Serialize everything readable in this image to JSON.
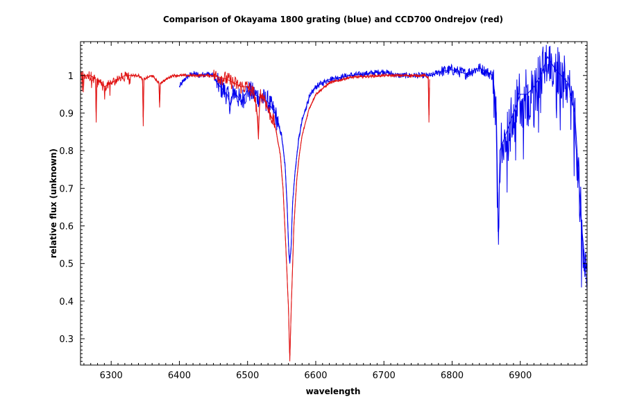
{
  "chart_data": {
    "type": "line",
    "title": "Comparison of Okayama 1800 grating (blue) and CCD700 Ondrejov (red)",
    "xlabel": "wavelength",
    "ylabel": "relative flux (unknown)",
    "xlim": [
      6255,
      6998
    ],
    "ylim": [
      0.23,
      1.09
    ],
    "x_ticks": [
      6300,
      6400,
      6500,
      6600,
      6700,
      6800,
      6900
    ],
    "y_ticks": [
      0.3,
      0.4,
      0.5,
      0.6,
      0.7,
      0.8,
      0.9,
      1
    ],
    "x_tick_labels": [
      "6300",
      "6400",
      "6500",
      "6600",
      "6700",
      "6800",
      "6900"
    ],
    "y_tick_labels": [
      "0.3",
      "0.4",
      "0.5",
      "0.6",
      "0.7",
      "0.8",
      "0.9",
      "1"
    ],
    "grid": false,
    "colors": {
      "blue_series": "#0000ee",
      "red_series": "#e01010",
      "axes": "#000000"
    },
    "series": [
      {
        "color": "#0000ee",
        "x": [
          6400,
          6410,
          6420,
          6430,
          6440,
          6450,
          6455,
          6460,
          6470,
          6475,
          6480,
          6490,
          6500,
          6510,
          6520,
          6530,
          6540,
          6545,
          6550,
          6555,
          6558,
          6560,
          6562,
          6564,
          6566,
          6570,
          6575,
          6580,
          6590,
          6600,
          6620,
          6650,
          6700,
          6720,
          6750,
          6770,
          6780,
          6800,
          6820,
          6840,
          6860,
          6865,
          6868,
          6870,
          6880,
          6890,
          6900,
          6910,
          6920,
          6930,
          6940,
          6950,
          6960,
          6970,
          6980,
          6985,
          6990,
          6995,
          6998
        ],
        "y": [
          0.97,
          0.995,
          1.005,
          1.0,
          1.005,
          1.0,
          0.98,
          0.97,
          0.95,
          0.92,
          0.96,
          0.93,
          0.96,
          0.95,
          0.94,
          0.93,
          0.9,
          0.87,
          0.84,
          0.76,
          0.66,
          0.55,
          0.5,
          0.55,
          0.66,
          0.75,
          0.83,
          0.88,
          0.94,
          0.97,
          0.99,
          1.0,
          1.01,
          1.0,
          1.0,
          1.0,
          1.01,
          1.015,
          1.005,
          1.02,
          1.0,
          0.9,
          0.55,
          0.8,
          0.85,
          0.9,
          0.95,
          0.95,
          0.97,
          1.0,
          1.05,
          1.02,
          1.0,
          0.98,
          0.9,
          0.75,
          0.6,
          0.5,
          0.43
        ]
      },
      {
        "color": "#e01010",
        "x": [
          6255,
          6270,
          6277,
          6278,
          6279,
          6290,
          6300,
          6320,
          6340,
          6346,
          6347,
          6348,
          6360,
          6370,
          6371,
          6372,
          6390,
          6420,
          6450,
          6470,
          6490,
          6500,
          6510,
          6514,
          6516,
          6518,
          6525,
          6530,
          6540,
          6548,
          6552,
          6556,
          6560,
          6562,
          6564,
          6568,
          6572,
          6576,
          6580,
          6590,
          6600,
          6620,
          6650,
          6700,
          6740,
          6760,
          6765,
          6766,
          6767
        ],
        "y": [
          1.0,
          1.0,
          0.99,
          0.875,
          0.99,
          0.97,
          0.98,
          1.0,
          1.0,
          0.99,
          0.865,
          0.99,
          1.0,
          0.98,
          0.915,
          0.98,
          1.0,
          1.0,
          1.0,
          0.99,
          0.97,
          0.97,
          0.95,
          0.9,
          0.83,
          0.95,
          0.94,
          0.91,
          0.87,
          0.79,
          0.7,
          0.55,
          0.38,
          0.24,
          0.38,
          0.6,
          0.72,
          0.79,
          0.84,
          0.91,
          0.95,
          0.98,
          0.995,
          1.0,
          1.0,
          1.0,
          0.995,
          0.875,
          0.99
        ]
      }
    ]
  }
}
